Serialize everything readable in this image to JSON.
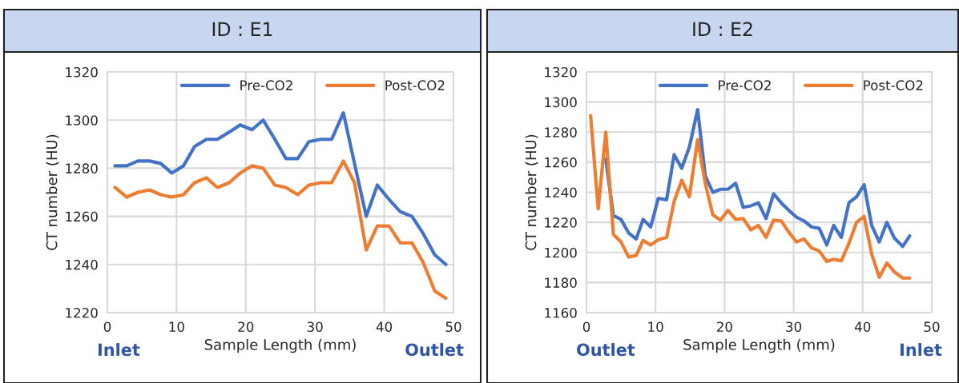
{
  "chart_data": [
    {
      "type": "line",
      "title": "ID : E1",
      "xlabel": "Sample Length (mm)",
      "ylabel": "CT number (HU)",
      "xlim": [
        0,
        50
      ],
      "xticks": [
        0,
        10,
        20,
        30,
        40,
        50
      ],
      "ylim": [
        1220,
        1320
      ],
      "yticks": [
        1220,
        1240,
        1260,
        1280,
        1300,
        1320
      ],
      "grid": true,
      "legend": "top right",
      "annotations": [
        "Inlet",
        "Outlet"
      ],
      "series": [
        {
          "name": "Pre-CO2",
          "color": "#4472c4",
          "x": [
            1.1,
            2.8,
            4.4,
            6.1,
            7.7,
            9.3,
            11.0,
            12.6,
            14.3,
            15.9,
            17.6,
            19.2,
            20.9,
            22.5,
            24.2,
            25.8,
            27.5,
            29.1,
            30.8,
            32.4,
            34.1,
            35.7,
            37.4,
            39.0,
            40.7,
            42.3,
            44.0,
            45.6,
            47.3,
            48.9
          ],
          "values": [
            1281,
            1281,
            1283,
            1283,
            1282,
            1278,
            1281,
            1289,
            1292,
            1292,
            1295,
            1298,
            1296,
            1300,
            1292,
            1284,
            1284,
            1291,
            1292,
            1292,
            1303,
            1282,
            1260,
            1273,
            1267,
            1262,
            1260,
            1253,
            1244,
            1240
          ]
        },
        {
          "name": "Post-CO2",
          "color": "#ed7d31",
          "x": [
            1.1,
            2.8,
            4.4,
            6.1,
            7.7,
            9.3,
            11.0,
            12.6,
            14.3,
            15.9,
            17.6,
            19.2,
            20.9,
            22.5,
            24.2,
            25.8,
            27.5,
            29.1,
            30.8,
            32.4,
            34.1,
            35.7,
            37.4,
            39.0,
            40.7,
            42.3,
            44.0,
            45.6,
            47.3,
            48.9
          ],
          "values": [
            1272,
            1268,
            1270,
            1271,
            1269,
            1268,
            1269,
            1274,
            1276,
            1272,
            1274,
            1278,
            1281,
            1280,
            1273,
            1272,
            1269,
            1273,
            1274,
            1274,
            1283,
            1274,
            1246,
            1256,
            1256,
            1249,
            1249,
            1241,
            1229,
            1226
          ]
        }
      ]
    },
    {
      "type": "line",
      "title": "ID : E2",
      "xlabel": "Sample Length (mm)",
      "ylabel": "CT number (HU)",
      "xlim": [
        0,
        50
      ],
      "xticks": [
        0,
        10,
        20,
        30,
        40,
        50
      ],
      "ylim": [
        1160,
        1320
      ],
      "yticks": [
        1160,
        1180,
        1200,
        1220,
        1240,
        1260,
        1280,
        1300,
        1320
      ],
      "grid": true,
      "legend": "top right",
      "annotations": [
        "Outlet",
        "Inlet"
      ],
      "series": [
        {
          "name": "Pre-CO2",
          "color": "#4472c4",
          "x": [
            2.8,
            3.9,
            5.0,
            6.1,
            7.2,
            8.2,
            9.3,
            10.4,
            11.6,
            12.7,
            13.8,
            14.9,
            16.1,
            17.2,
            18.3,
            19.4,
            20.5,
            21.6,
            22.7,
            23.8,
            24.9,
            26.0,
            27.1,
            28.2,
            29.3,
            30.4,
            31.5,
            32.6,
            33.7,
            34.8,
            35.8,
            36.9,
            38.0,
            39.1,
            40.2,
            41.3,
            42.4,
            43.5,
            44.6,
            45.8,
            46.8
          ],
          "values": [
            1262,
            1224.5,
            1222,
            1213,
            1209,
            1222,
            1217,
            1236,
            1235,
            1265,
            1256,
            1270,
            1295,
            1251,
            1240,
            1242,
            1242,
            1246,
            1230,
            1231,
            1233,
            1222.5,
            1239,
            1233,
            1228,
            1223.5,
            1221,
            1217,
            1216,
            1205,
            1218,
            1210,
            1233,
            1237,
            1245,
            1218,
            1207,
            1220,
            1209.5,
            1204,
            1211
          ]
        },
        {
          "name": "Post-CO2",
          "color": "#ed7d31",
          "x": [
            0.6,
            1.7,
            2.8,
            3.9,
            5.0,
            6.1,
            7.2,
            8.2,
            9.3,
            10.4,
            11.6,
            12.7,
            13.8,
            14.9,
            16.1,
            17.2,
            18.3,
            19.4,
            20.5,
            21.6,
            22.7,
            23.8,
            24.9,
            26.0,
            27.1,
            28.2,
            29.3,
            30.4,
            31.5,
            32.6,
            33.7,
            34.8,
            35.8,
            36.9,
            38.0,
            39.1,
            40.2,
            41.3,
            42.4,
            43.5,
            44.6,
            45.8,
            46.8
          ],
          "values": [
            1291,
            1229,
            1280,
            1212,
            1207,
            1197,
            1198,
            1208,
            1205,
            1208.5,
            1210,
            1234,
            1248,
            1237,
            1275,
            1246,
            1225,
            1221.5,
            1228,
            1222,
            1222.5,
            1215,
            1218,
            1210,
            1221.5,
            1221,
            1213.5,
            1207,
            1209,
            1203,
            1201,
            1194,
            1195.5,
            1194.5,
            1206,
            1220,
            1224,
            1199,
            1183.5,
            1193,
            1187,
            1183,
            1183
          ]
        }
      ]
    }
  ]
}
